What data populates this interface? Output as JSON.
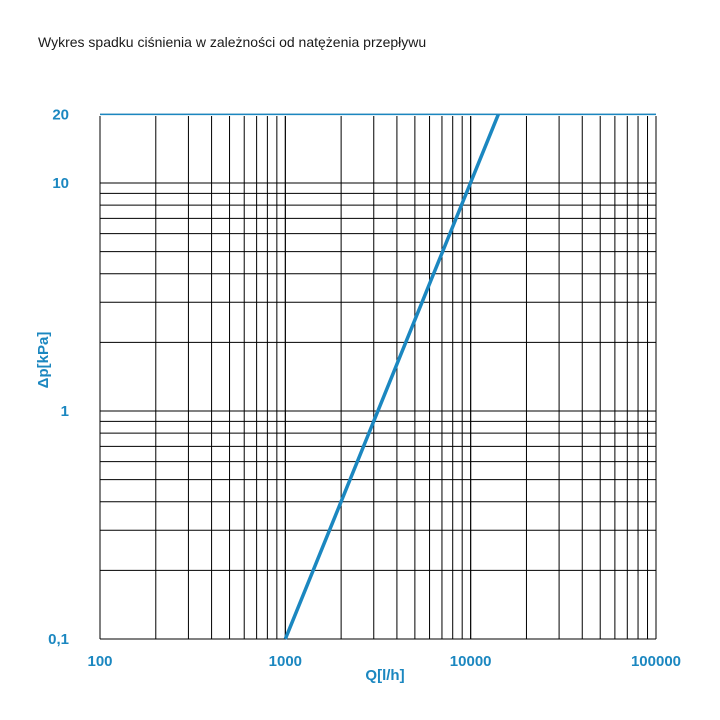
{
  "title": "Wykres spadku ciśnienia w zależności od natężenia przepływu",
  "colors": {
    "accent": "#1b87c0",
    "grid": "#000000",
    "background": "#ffffff"
  },
  "chart_data": {
    "type": "line",
    "title": "Wykres spadku ciśnienia w zależności od natężenia przepływu",
    "xlabel": "Q[l/h]",
    "ylabel": "Δp[kPa]",
    "xscale": "log",
    "yscale": "log",
    "xlim": [
      100,
      100000
    ],
    "ylim": [
      0.1,
      20
    ],
    "x_ticks": [
      100,
      1000,
      10000,
      100000
    ],
    "x_tick_labels": [
      "100",
      "1000",
      "10000",
      "100000"
    ],
    "y_ticks": [
      0.1,
      1,
      10,
      20
    ],
    "y_tick_labels": [
      "0,1",
      "1",
      "10",
      "20"
    ],
    "grid": true,
    "legend": "none",
    "series": [
      {
        "x": [
          1000,
          14100
        ],
        "y": [
          0.1,
          20
        ]
      }
    ]
  }
}
